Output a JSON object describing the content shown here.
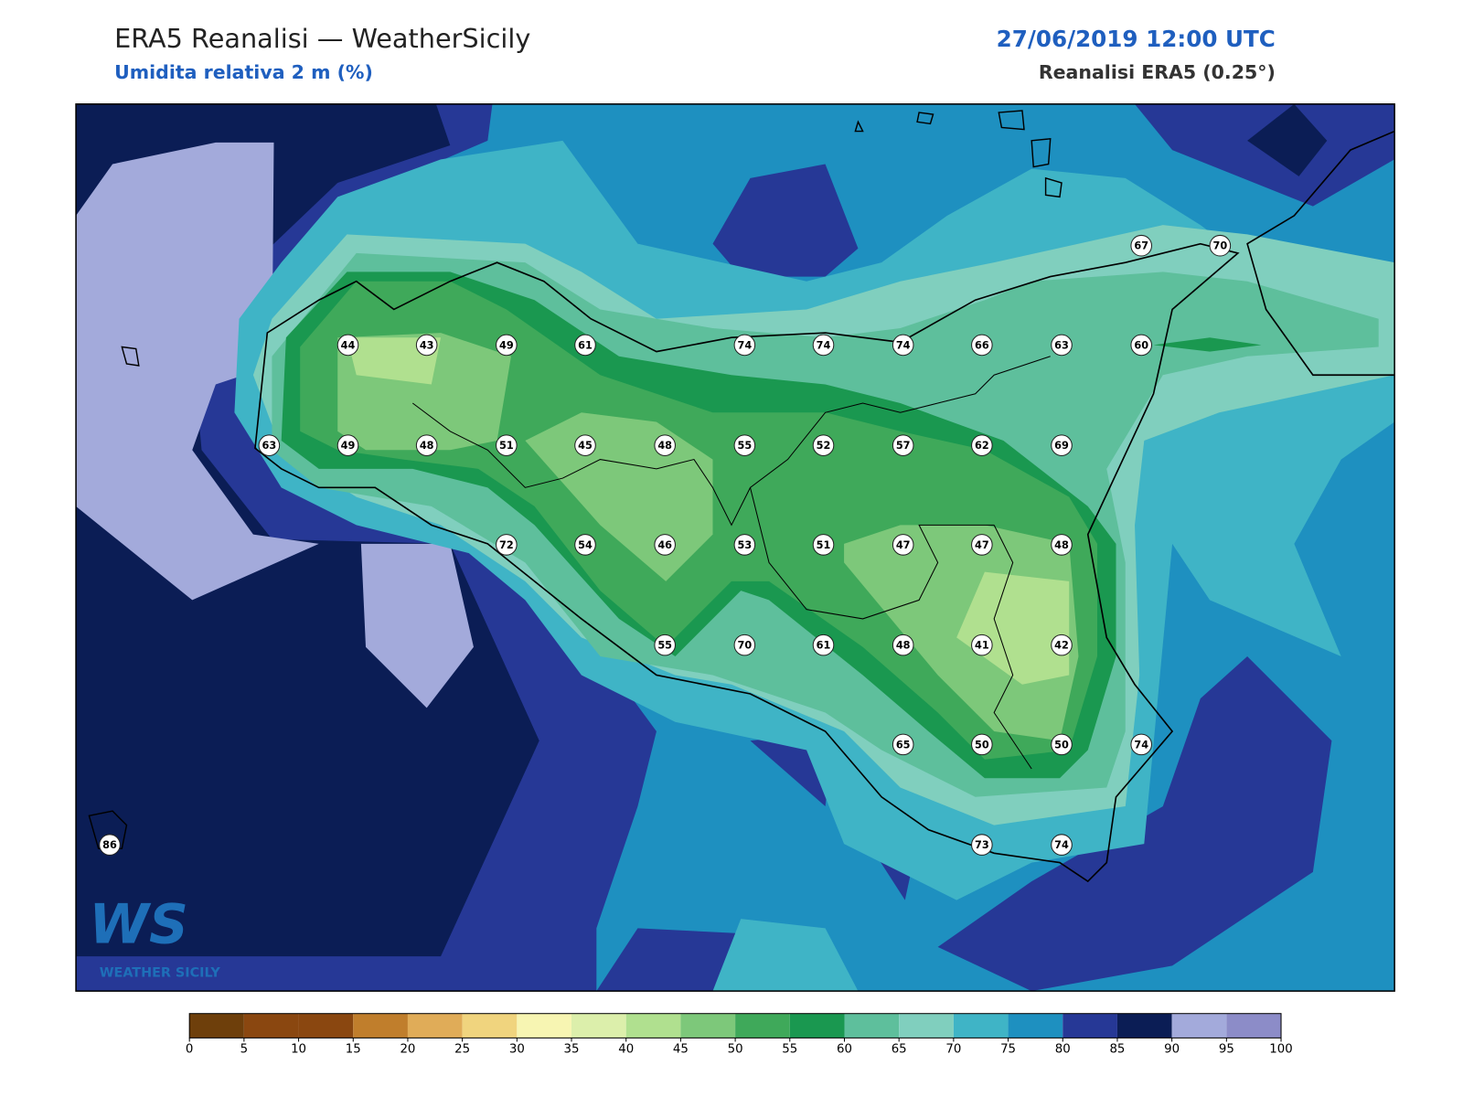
{
  "header": {
    "title": "ERA5 Reanalisi — WeatherSicily",
    "subtitle": "Umidita relativa 2 m (%)",
    "datetime": "27/06/2019 12:00 UTC",
    "source": "Reanalisi ERA5 (0.25°)"
  },
  "stations": [
    67,
    70,
    44,
    43,
    49,
    61,
    74,
    74,
    74,
    66,
    63,
    60,
    63,
    49,
    48,
    51,
    45,
    48,
    55,
    52,
    57,
    62,
    69,
    72,
    54,
    46,
    53,
    51,
    47,
    47,
    48,
    55,
    70,
    61,
    48,
    41,
    42,
    65,
    50,
    50,
    74,
    73,
    74,
    86
  ],
  "colorbar": {
    "ticks": [
      0,
      5,
      10,
      15,
      20,
      25,
      30,
      35,
      40,
      45,
      50,
      55,
      60,
      65,
      70,
      75,
      80,
      85,
      90,
      95,
      100
    ],
    "colors": [
      "#6e3f0b",
      "#8a4710",
      "#8a4710",
      "#c07e2c",
      "#e0ac58",
      "#f0d47e",
      "#f7f5b2",
      "#dcefab",
      "#b0e08f",
      "#7dc87a",
      "#3fa95a",
      "#1a9850",
      "#5ebf9c",
      "#80cfbe",
      "#3fb4c6",
      "#1e90c0",
      "#263896",
      "#0b1d55",
      "#a3aadb",
      "#8c8cc8"
    ]
  },
  "logo": {
    "mark": "WS",
    "text": "WEATHER SICILY"
  }
}
